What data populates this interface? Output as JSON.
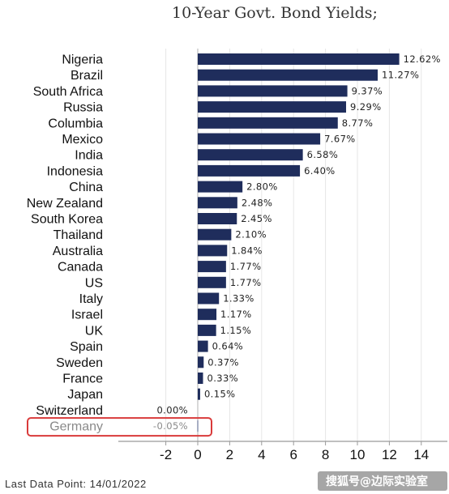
{
  "chart_data": {
    "type": "bar",
    "orientation": "horizontal",
    "title": "10-Year Govt. Bond Yields;",
    "categories": [
      "Nigeria",
      "Brazil",
      "South Africa",
      "Russia",
      "Columbia",
      "Mexico",
      "India",
      "Indonesia",
      "China",
      "New Zealand",
      "South Korea",
      "Thailand",
      "Australia",
      "Canada",
      "US",
      "Italy",
      "Israel",
      "UK",
      "Spain",
      "Sweden",
      "France",
      "Japan",
      "Switzerland",
      "Germany"
    ],
    "values": [
      12.62,
      11.27,
      9.37,
      9.29,
      8.77,
      7.67,
      6.58,
      6.4,
      2.8,
      2.48,
      2.45,
      2.1,
      1.84,
      1.77,
      1.77,
      1.33,
      1.17,
      1.15,
      0.64,
      0.37,
      0.33,
      0.15,
      0.0,
      -0.05
    ],
    "value_labels": [
      "12.62%",
      "11.27%",
      "9.37%",
      "9.29%",
      "8.77%",
      "7.67%",
      "6.58%",
      "6.40%",
      "2.80%",
      "2.48%",
      "2.45%",
      "2.10%",
      "1.84%",
      "1.77%",
      "1.77%",
      "1.33%",
      "1.17%",
      "1.15%",
      "0.64%",
      "0.37%",
      "0.33%",
      "0.15%",
      "0.00%",
      "-0.05%"
    ],
    "highlighted_category": "Germany",
    "xlim": [
      -3.8,
      15.8
    ],
    "xticks": [
      -2,
      0,
      2,
      4,
      6,
      8,
      10,
      12,
      14
    ],
    "xtick_labels": [
      "-2",
      "0",
      "2",
      "4",
      "6",
      "8",
      "10",
      "12",
      "14"
    ],
    "grid": true,
    "legend": false,
    "bar_color": "#1f2d5c",
    "highlight_color": "#d93a3a",
    "footnote": "Last Data Point: 14/01/2022"
  },
  "watermark": "搜狐号@边际实验室"
}
